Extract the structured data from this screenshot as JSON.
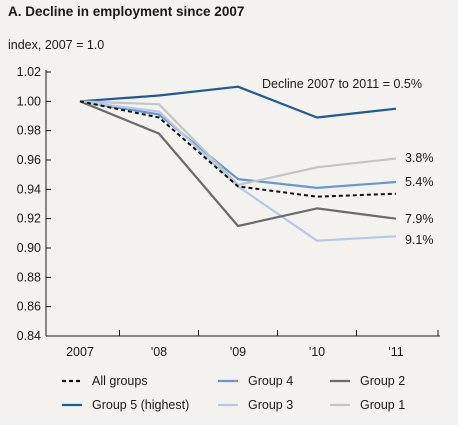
{
  "chart_data": {
    "type": "line",
    "title": "A. Decline in employment since 2007",
    "ylabel": "index, 2007 = 1.0",
    "xlabel": "",
    "categories": [
      "2007",
      "'08",
      "'09",
      "'10",
      "'11"
    ],
    "ylim": [
      0.84,
      1.02
    ],
    "yticks": [
      "1.02",
      "1.00",
      "0.98",
      "0.96",
      "0.94",
      "0.92",
      "0.90",
      "0.88",
      "0.86",
      "0.84"
    ],
    "grid": false,
    "legend_position": "bottom",
    "series": [
      {
        "name": "Group 5 (highest)",
        "color": "#1f5a96",
        "dash": "solid",
        "values": [
          1.0,
          1.004,
          1.01,
          0.989,
          0.995
        ]
      },
      {
        "name": "Group 4",
        "color": "#6a97cf",
        "dash": "solid",
        "values": [
          1.0,
          0.991,
          0.947,
          0.941,
          0.945
        ]
      },
      {
        "name": "Group 3",
        "color": "#b3c9e6",
        "dash": "solid",
        "values": [
          1.0,
          0.993,
          0.942,
          0.905,
          0.908
        ]
      },
      {
        "name": "Group 2",
        "color": "#6b6b6b",
        "dash": "solid",
        "values": [
          1.0,
          0.978,
          0.915,
          0.927,
          0.92
        ]
      },
      {
        "name": "Group 1",
        "color": "#c4c4c4",
        "dash": "solid",
        "values": [
          1.0,
          0.998,
          0.943,
          0.955,
          0.961
        ]
      },
      {
        "name": "All groups",
        "color": "#111111",
        "dash": "dashed",
        "values": [
          1.0,
          0.989,
          0.942,
          0.935,
          0.937
        ]
      }
    ],
    "annotations": [
      {
        "text": "Decline 2007 to 2011 = 0.5%",
        "series": "Group 5 (highest)"
      },
      {
        "text": "3.8%",
        "series": "Group 1"
      },
      {
        "text": "5.4%",
        "series": "Group 4"
      },
      {
        "text": "7.9%",
        "series": "Group 2"
      },
      {
        "text": "9.1%",
        "series": "Group 3"
      }
    ],
    "legend_order": [
      "All groups",
      "Group 4",
      "Group 2",
      "Group 5 (highest)",
      "Group 3",
      "Group 1"
    ]
  }
}
